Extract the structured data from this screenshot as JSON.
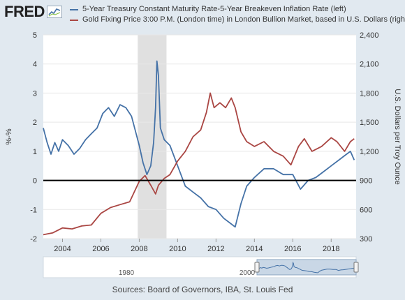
{
  "header": {
    "logo_text": "FRED",
    "logo_icon": "chart-line-icon",
    "legend": [
      {
        "label": "5-Year Treasury Constant Maturity Rate-5-Year Breakeven Inflation Rate (left)",
        "color": "#4572a7"
      },
      {
        "label": "Gold Fixing Price 3:00 P.M. (London time) in London Bullion Market, based in U.S. Dollars (right)",
        "color": "#aa4643"
      }
    ]
  },
  "footer": {
    "source": "Sources: Board of Governors, IBA, St. Louis Fed"
  },
  "navigator": {
    "labels": [
      "1980",
      "2000"
    ]
  },
  "chart_data": {
    "type": "line",
    "title": "",
    "xlabel": "",
    "ylabel_left": "%-%",
    "ylabel_right": "U.S. Dollars per Troy Ounce",
    "xlim": [
      2003.0,
      2019.3
    ],
    "ylim_left": [
      -2,
      5
    ],
    "ylim_right": [
      300,
      2400
    ],
    "x_ticks": [
      2004,
      2006,
      2008,
      2010,
      2012,
      2014,
      2016,
      2018
    ],
    "y_ticks_left": [
      -2,
      -1,
      0,
      1,
      2,
      3,
      4,
      5
    ],
    "y_ticks_right": [
      300,
      600,
      900,
      1200,
      1500,
      1800,
      2100,
      2400
    ],
    "y_tick_labels_right": [
      "300",
      "600",
      "900",
      "1,200",
      "1,500",
      "1,800",
      "2,100",
      "2,400"
    ],
    "zero_line": 0,
    "recession": [
      2007.92,
      2009.42
    ],
    "grid": "horizontal",
    "series": [
      {
        "name": "5-Year Treasury Constant Maturity Rate-5-Year Breakeven Inflation Rate (left)",
        "axis": "left",
        "color": "#4572a7",
        "x": [
          2003.0,
          2003.2,
          2003.4,
          2003.6,
          2003.8,
          2004.0,
          2004.3,
          2004.6,
          2004.9,
          2005.2,
          2005.5,
          2005.8,
          2006.1,
          2006.4,
          2006.7,
          2007.0,
          2007.3,
          2007.6,
          2007.8,
          2008.0,
          2008.2,
          2008.4,
          2008.6,
          2008.75,
          2008.85,
          2008.92,
          2009.0,
          2009.1,
          2009.3,
          2009.6,
          2010.0,
          2010.4,
          2010.8,
          2011.2,
          2011.6,
          2012.0,
          2012.4,
          2012.8,
          2013.0,
          2013.3,
          2013.6,
          2014.0,
          2014.5,
          2015.0,
          2015.5,
          2016.0,
          2016.4,
          2016.8,
          2017.2,
          2017.6,
          2018.0,
          2018.4,
          2018.8,
          2019.0,
          2019.2
        ],
        "values": [
          1.8,
          1.3,
          0.9,
          1.3,
          1.0,
          1.4,
          1.2,
          0.9,
          1.1,
          1.4,
          1.6,
          1.8,
          2.3,
          2.5,
          2.2,
          2.6,
          2.5,
          2.2,
          1.7,
          1.2,
          0.6,
          0.2,
          0.5,
          1.3,
          2.5,
          4.1,
          3.6,
          1.8,
          1.4,
          1.2,
          0.5,
          -0.2,
          -0.4,
          -0.6,
          -0.9,
          -1.0,
          -1.3,
          -1.5,
          -1.6,
          -0.8,
          -0.2,
          0.1,
          0.4,
          0.4,
          0.2,
          0.2,
          -0.3,
          0.0,
          0.1,
          0.3,
          0.5,
          0.7,
          0.9,
          1.0,
          0.7
        ]
      },
      {
        "name": "Gold Fixing Price 3:00 P.M. (London time) in London Bullion Market, based in U.S. Dollars (right)",
        "axis": "right",
        "color": "#aa4643",
        "x": [
          2003.0,
          2003.5,
          2004.0,
          2004.5,
          2005.0,
          2005.5,
          2006.0,
          2006.5,
          2007.0,
          2007.5,
          2008.0,
          2008.3,
          2008.6,
          2008.85,
          2009.0,
          2009.3,
          2009.6,
          2010.0,
          2010.4,
          2010.8,
          2011.2,
          2011.5,
          2011.7,
          2011.9,
          2012.2,
          2012.5,
          2012.8,
          2013.0,
          2013.3,
          2013.6,
          2014.0,
          2014.5,
          2015.0,
          2015.5,
          2015.9,
          2016.3,
          2016.6,
          2017.0,
          2017.5,
          2018.0,
          2018.3,
          2018.7,
          2019.0,
          2019.2
        ],
        "values": [
          340,
          360,
          410,
          400,
          430,
          440,
          560,
          620,
          650,
          680,
          890,
          950,
          850,
          760,
          850,
          920,
          960,
          1100,
          1200,
          1350,
          1420,
          1600,
          1800,
          1650,
          1700,
          1650,
          1750,
          1650,
          1400,
          1300,
          1250,
          1300,
          1200,
          1150,
          1060,
          1250,
          1330,
          1200,
          1250,
          1340,
          1300,
          1200,
          1300,
          1330
        ]
      }
    ]
  }
}
